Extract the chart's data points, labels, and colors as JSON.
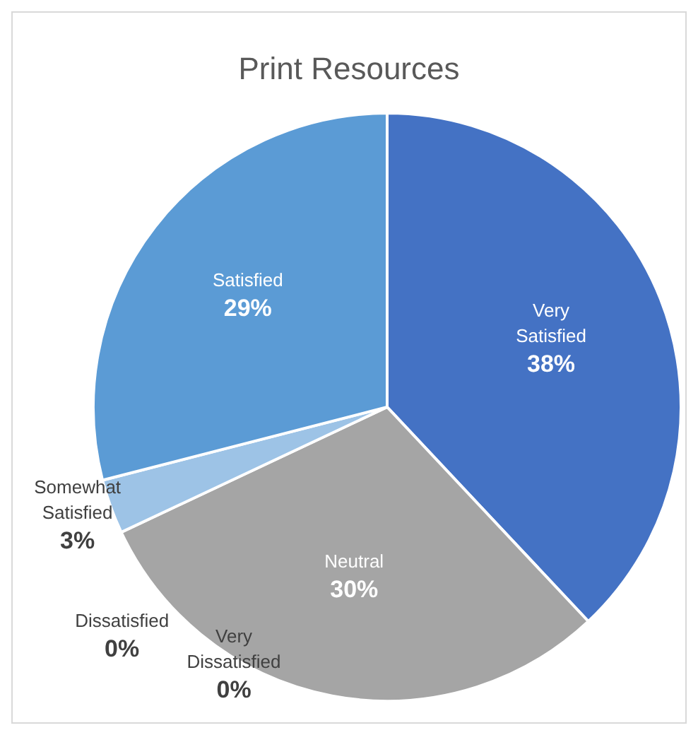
{
  "chart_data": {
    "type": "pie",
    "title": "Print Resources",
    "categories": [
      "Very Satisfied",
      "Neutral",
      "Very Dissatisfied",
      "Dissatisfied",
      "Somewhat Satisfied",
      "Satisfied"
    ],
    "values": [
      38,
      30,
      0,
      0,
      3,
      29
    ],
    "colors": [
      "#4472c4",
      "#a5a5a5",
      "#ed7d31",
      "#ffc000",
      "#9dc3e6",
      "#5b9bd5"
    ],
    "value_labels": [
      "38%",
      "30%",
      "0%",
      "0%",
      "3%",
      "29%"
    ]
  }
}
